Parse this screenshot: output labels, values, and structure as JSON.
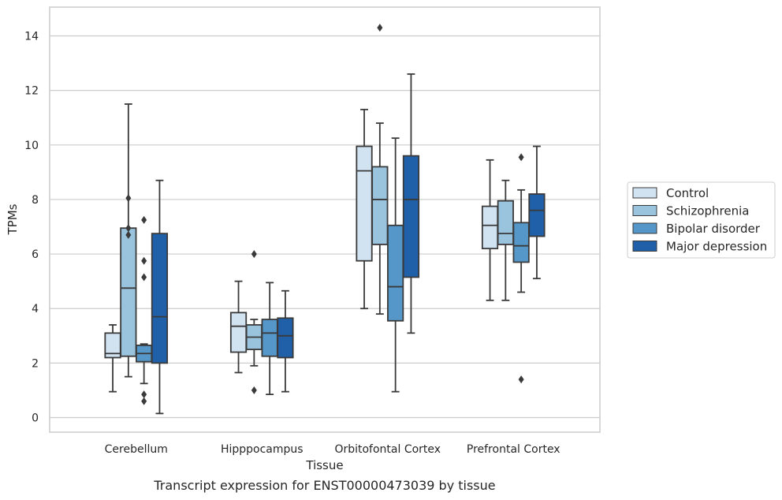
{
  "caption": "Transcript expression for ENST00000473039 by tissue",
  "chart_data": {
    "type": "box",
    "title": "",
    "xlabel": "Tissue",
    "ylabel": "TPMs",
    "ylim": [
      -0.5,
      15.1
    ],
    "yticks": [
      0,
      2,
      4,
      6,
      8,
      10,
      12,
      14
    ],
    "grid": true,
    "legend_position": "right",
    "categories": [
      "Cerebellum",
      "Hipppocampus",
      "Orbitofontal Cortex",
      "Prefrontal Cortex"
    ],
    "series": [
      {
        "name": "Control",
        "color": "#d1e2f1",
        "boxes": [
          {
            "q1": 2.2,
            "median": 2.35,
            "q3": 3.1,
            "whislo": 0.95,
            "whishi": 3.4,
            "fliers": []
          },
          {
            "q1": 2.4,
            "median": 3.35,
            "q3": 3.85,
            "whislo": 1.65,
            "whishi": 5.0,
            "fliers": []
          },
          {
            "q1": 5.75,
            "median": 9.05,
            "q3": 9.95,
            "whislo": 4.0,
            "whishi": 11.3,
            "fliers": []
          },
          {
            "q1": 6.2,
            "median": 7.05,
            "q3": 7.75,
            "whislo": 4.3,
            "whishi": 9.45,
            "fliers": []
          }
        ]
      },
      {
        "name": "Schizophrenia",
        "color": "#9ac3dd",
        "boxes": [
          {
            "q1": 2.25,
            "median": 4.75,
            "q3": 6.95,
            "whislo": 1.5,
            "whishi": 11.5,
            "fliers": [
              8.05,
              6.95,
              6.7
            ]
          },
          {
            "q1": 2.5,
            "median": 2.95,
            "q3": 3.4,
            "whislo": 1.9,
            "whishi": 3.6,
            "fliers": [
              6.0,
              1.0
            ]
          },
          {
            "q1": 6.35,
            "median": 8.0,
            "q3": 9.2,
            "whislo": 3.8,
            "whishi": 10.8,
            "fliers": [
              14.3
            ]
          },
          {
            "q1": 6.35,
            "median": 6.75,
            "q3": 7.95,
            "whislo": 4.3,
            "whishi": 8.7,
            "fliers": []
          }
        ]
      },
      {
        "name": "Bipolar disorder",
        "color": "#5597c8",
        "boxes": [
          {
            "q1": 2.05,
            "median": 2.35,
            "q3": 2.65,
            "whislo": 1.25,
            "whishi": 2.7,
            "fliers": [
              7.25,
              5.75,
              5.15,
              0.85,
              0.6
            ]
          },
          {
            "q1": 2.25,
            "median": 3.1,
            "q3": 3.6,
            "whislo": 0.85,
            "whishi": 4.95,
            "fliers": []
          },
          {
            "q1": 3.55,
            "median": 4.8,
            "q3": 7.05,
            "whislo": 0.95,
            "whishi": 10.25,
            "fliers": []
          },
          {
            "q1": 5.7,
            "median": 6.3,
            "q3": 7.15,
            "whislo": 4.6,
            "whishi": 8.35,
            "fliers": [
              9.55,
              1.4
            ]
          }
        ]
      },
      {
        "name": "Major depression",
        "color": "#2060a8",
        "boxes": [
          {
            "q1": 2.0,
            "median": 3.7,
            "q3": 6.75,
            "whislo": 0.15,
            "whishi": 8.7,
            "fliers": []
          },
          {
            "q1": 2.2,
            "median": 3.0,
            "q3": 3.65,
            "whislo": 0.95,
            "whishi": 4.65,
            "fliers": []
          },
          {
            "q1": 5.15,
            "median": 8.0,
            "q3": 9.6,
            "whislo": 3.1,
            "whishi": 12.6,
            "fliers": []
          },
          {
            "q1": 6.65,
            "median": 7.6,
            "q3": 8.2,
            "whislo": 5.1,
            "whishi": 9.95,
            "fliers": []
          }
        ]
      }
    ]
  }
}
